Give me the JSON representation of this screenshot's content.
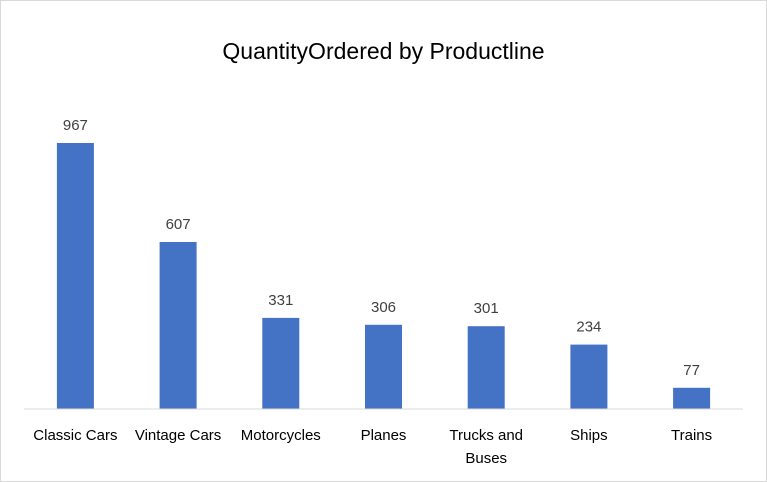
{
  "chart_data": {
    "type": "bar",
    "title": "QuantityOrdered by Productline",
    "categories": [
      "Classic Cars",
      "Vintage Cars",
      "Motorcycles",
      "Planes",
      "Trucks and Buses",
      "Ships",
      "Trains"
    ],
    "category_lines": [
      [
        "Classic Cars"
      ],
      [
        "Vintage Cars"
      ],
      [
        "Motorcycles"
      ],
      [
        "Planes"
      ],
      [
        "Trucks and",
        "Buses"
      ],
      [
        "Ships"
      ],
      [
        "Trains"
      ]
    ],
    "values": [
      967,
      607,
      331,
      306,
      301,
      234,
      77
    ],
    "data_labels": [
      "967",
      "607",
      "331",
      "306",
      "301",
      "234",
      "77"
    ],
    "xlabel": "",
    "ylabel": "",
    "ylim": [
      0,
      1000
    ],
    "grid": false,
    "legend": "none",
    "bar_color": "#4472c4"
  }
}
